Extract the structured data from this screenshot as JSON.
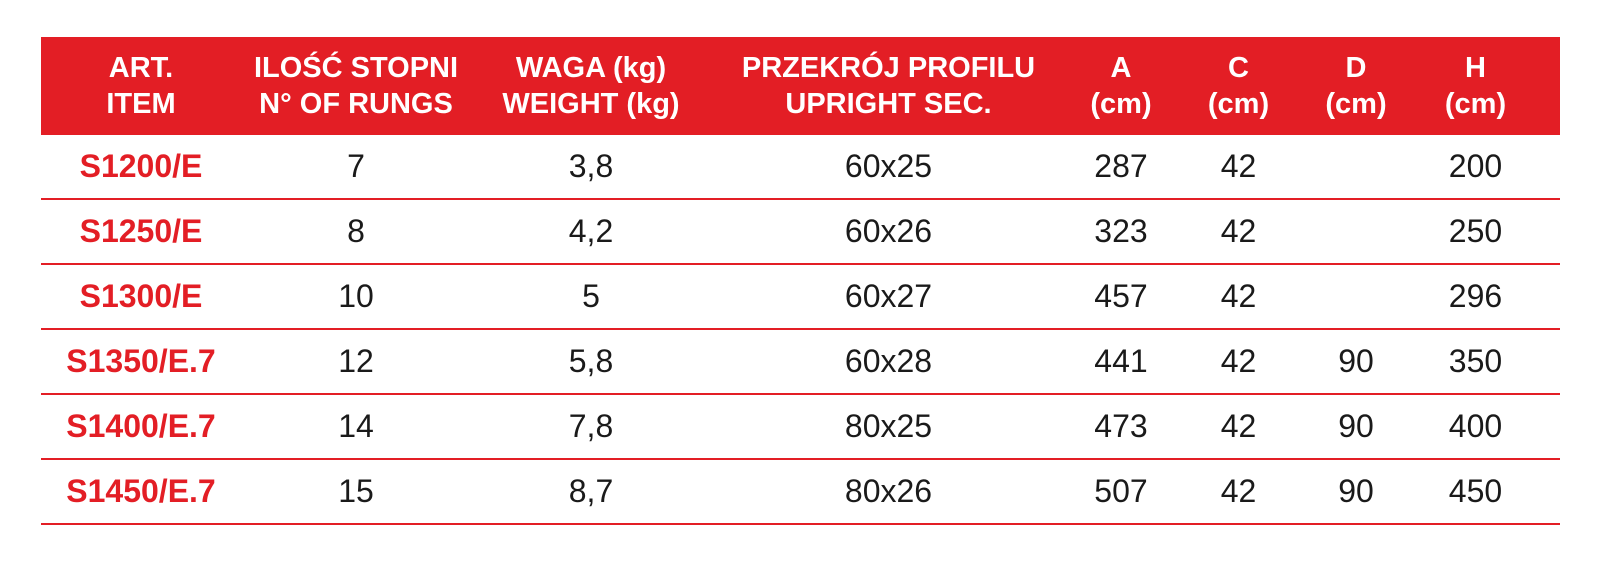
{
  "table": {
    "headers": [
      {
        "line1": "ART.",
        "line2": "ITEM"
      },
      {
        "line1": "ILOŚĆ STOPNI",
        "line2": "N° OF RUNGS"
      },
      {
        "line1": "WAGA (kg)",
        "line2": "WEIGHT (kg)"
      },
      {
        "line1": "PRZEKRÓJ PROFILU",
        "line2": "UPRIGHT SEC."
      },
      {
        "line1": "A",
        "line2": "(cm)"
      },
      {
        "line1": "C",
        "line2": "(cm)"
      },
      {
        "line1": "D",
        "line2": "(cm)"
      },
      {
        "line1": "H",
        "line2": "(cm)"
      }
    ],
    "rows": [
      {
        "item": "S1200/E",
        "rungs": "7",
        "weight": "3,8",
        "section": "60x25",
        "a": "287",
        "c": "42",
        "d": "",
        "h": "200"
      },
      {
        "item": "S1250/E",
        "rungs": "8",
        "weight": "4,2",
        "section": "60x26",
        "a": "323",
        "c": "42",
        "d": "",
        "h": "250"
      },
      {
        "item": "S1300/E",
        "rungs": "10",
        "weight": "5",
        "section": "60x27",
        "a": "457",
        "c": "42",
        "d": "",
        "h": "296"
      },
      {
        "item": "S1350/E.7",
        "rungs": "12",
        "weight": "5,8",
        "section": "60x28",
        "a": "441",
        "c": "42",
        "d": "90",
        "h": "350"
      },
      {
        "item": "S1400/E.7",
        "rungs": "14",
        "weight": "7,8",
        "section": "80x25",
        "a": "473",
        "c": "42",
        "d": "90",
        "h": "400"
      },
      {
        "item": "S1450/E.7",
        "rungs": "15",
        "weight": "8,7",
        "section": "80x26",
        "a": "507",
        "c": "42",
        "d": "90",
        "h": "450"
      }
    ]
  },
  "colors": {
    "accent": "#e31e25",
    "text": "#1a1a1a",
    "header_text": "#ffffff"
  }
}
